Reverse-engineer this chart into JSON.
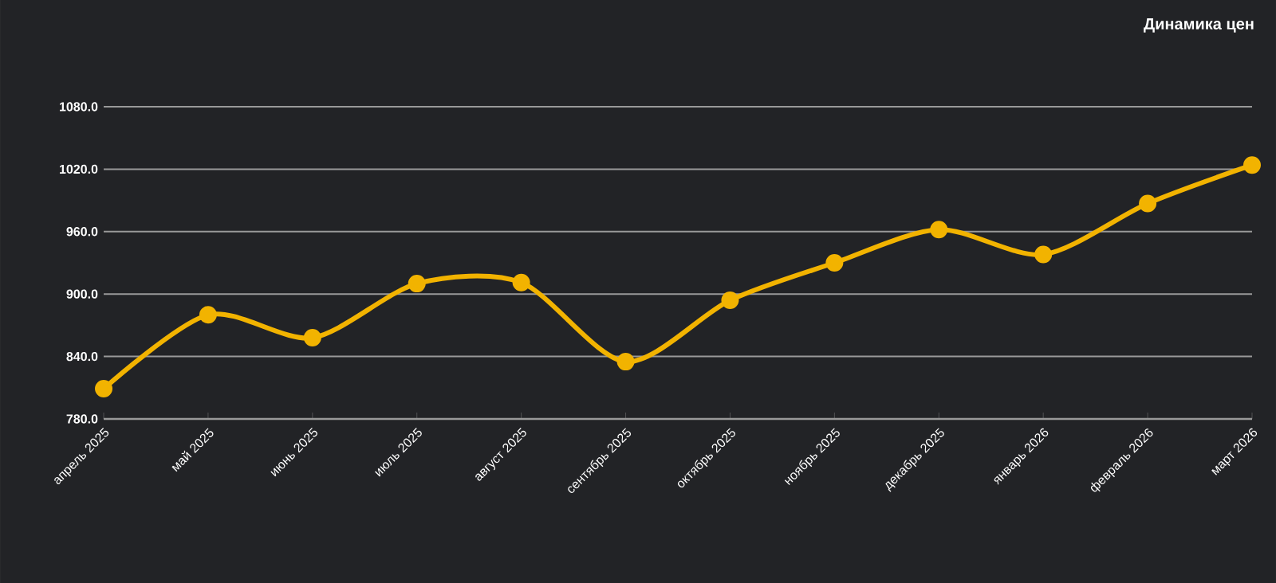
{
  "chart_data": {
    "type": "line",
    "title": "Динамика цен",
    "categories": [
      "апрель 2025",
      "май 2025",
      "июнь 2025",
      "июль 2025",
      "август 2025",
      "сентябрь 2025",
      "октябрь 2025",
      "ноябрь 2025",
      "декабрь 2025",
      "январь 2026",
      "февраль 2026",
      "март 2026"
    ],
    "series": [
      {
        "color": "#f2b300",
        "values": [
          809,
          880,
          858,
          910,
          911,
          835,
          894,
          930,
          962,
          938,
          987,
          1024
        ]
      }
    ],
    "ylim": [
      780,
      1080
    ],
    "yticks": [
      {
        "value": 780,
        "label": "780.0"
      },
      {
        "value": 840,
        "label": "840.0"
      },
      {
        "value": 900,
        "label": "900.0"
      },
      {
        "value": 960,
        "label": "960.0"
      },
      {
        "value": 1020,
        "label": "1020.0"
      },
      {
        "value": 1080,
        "label": "1080.0"
      }
    ],
    "grid": "y",
    "marker": "circle",
    "line_style": "solid"
  }
}
